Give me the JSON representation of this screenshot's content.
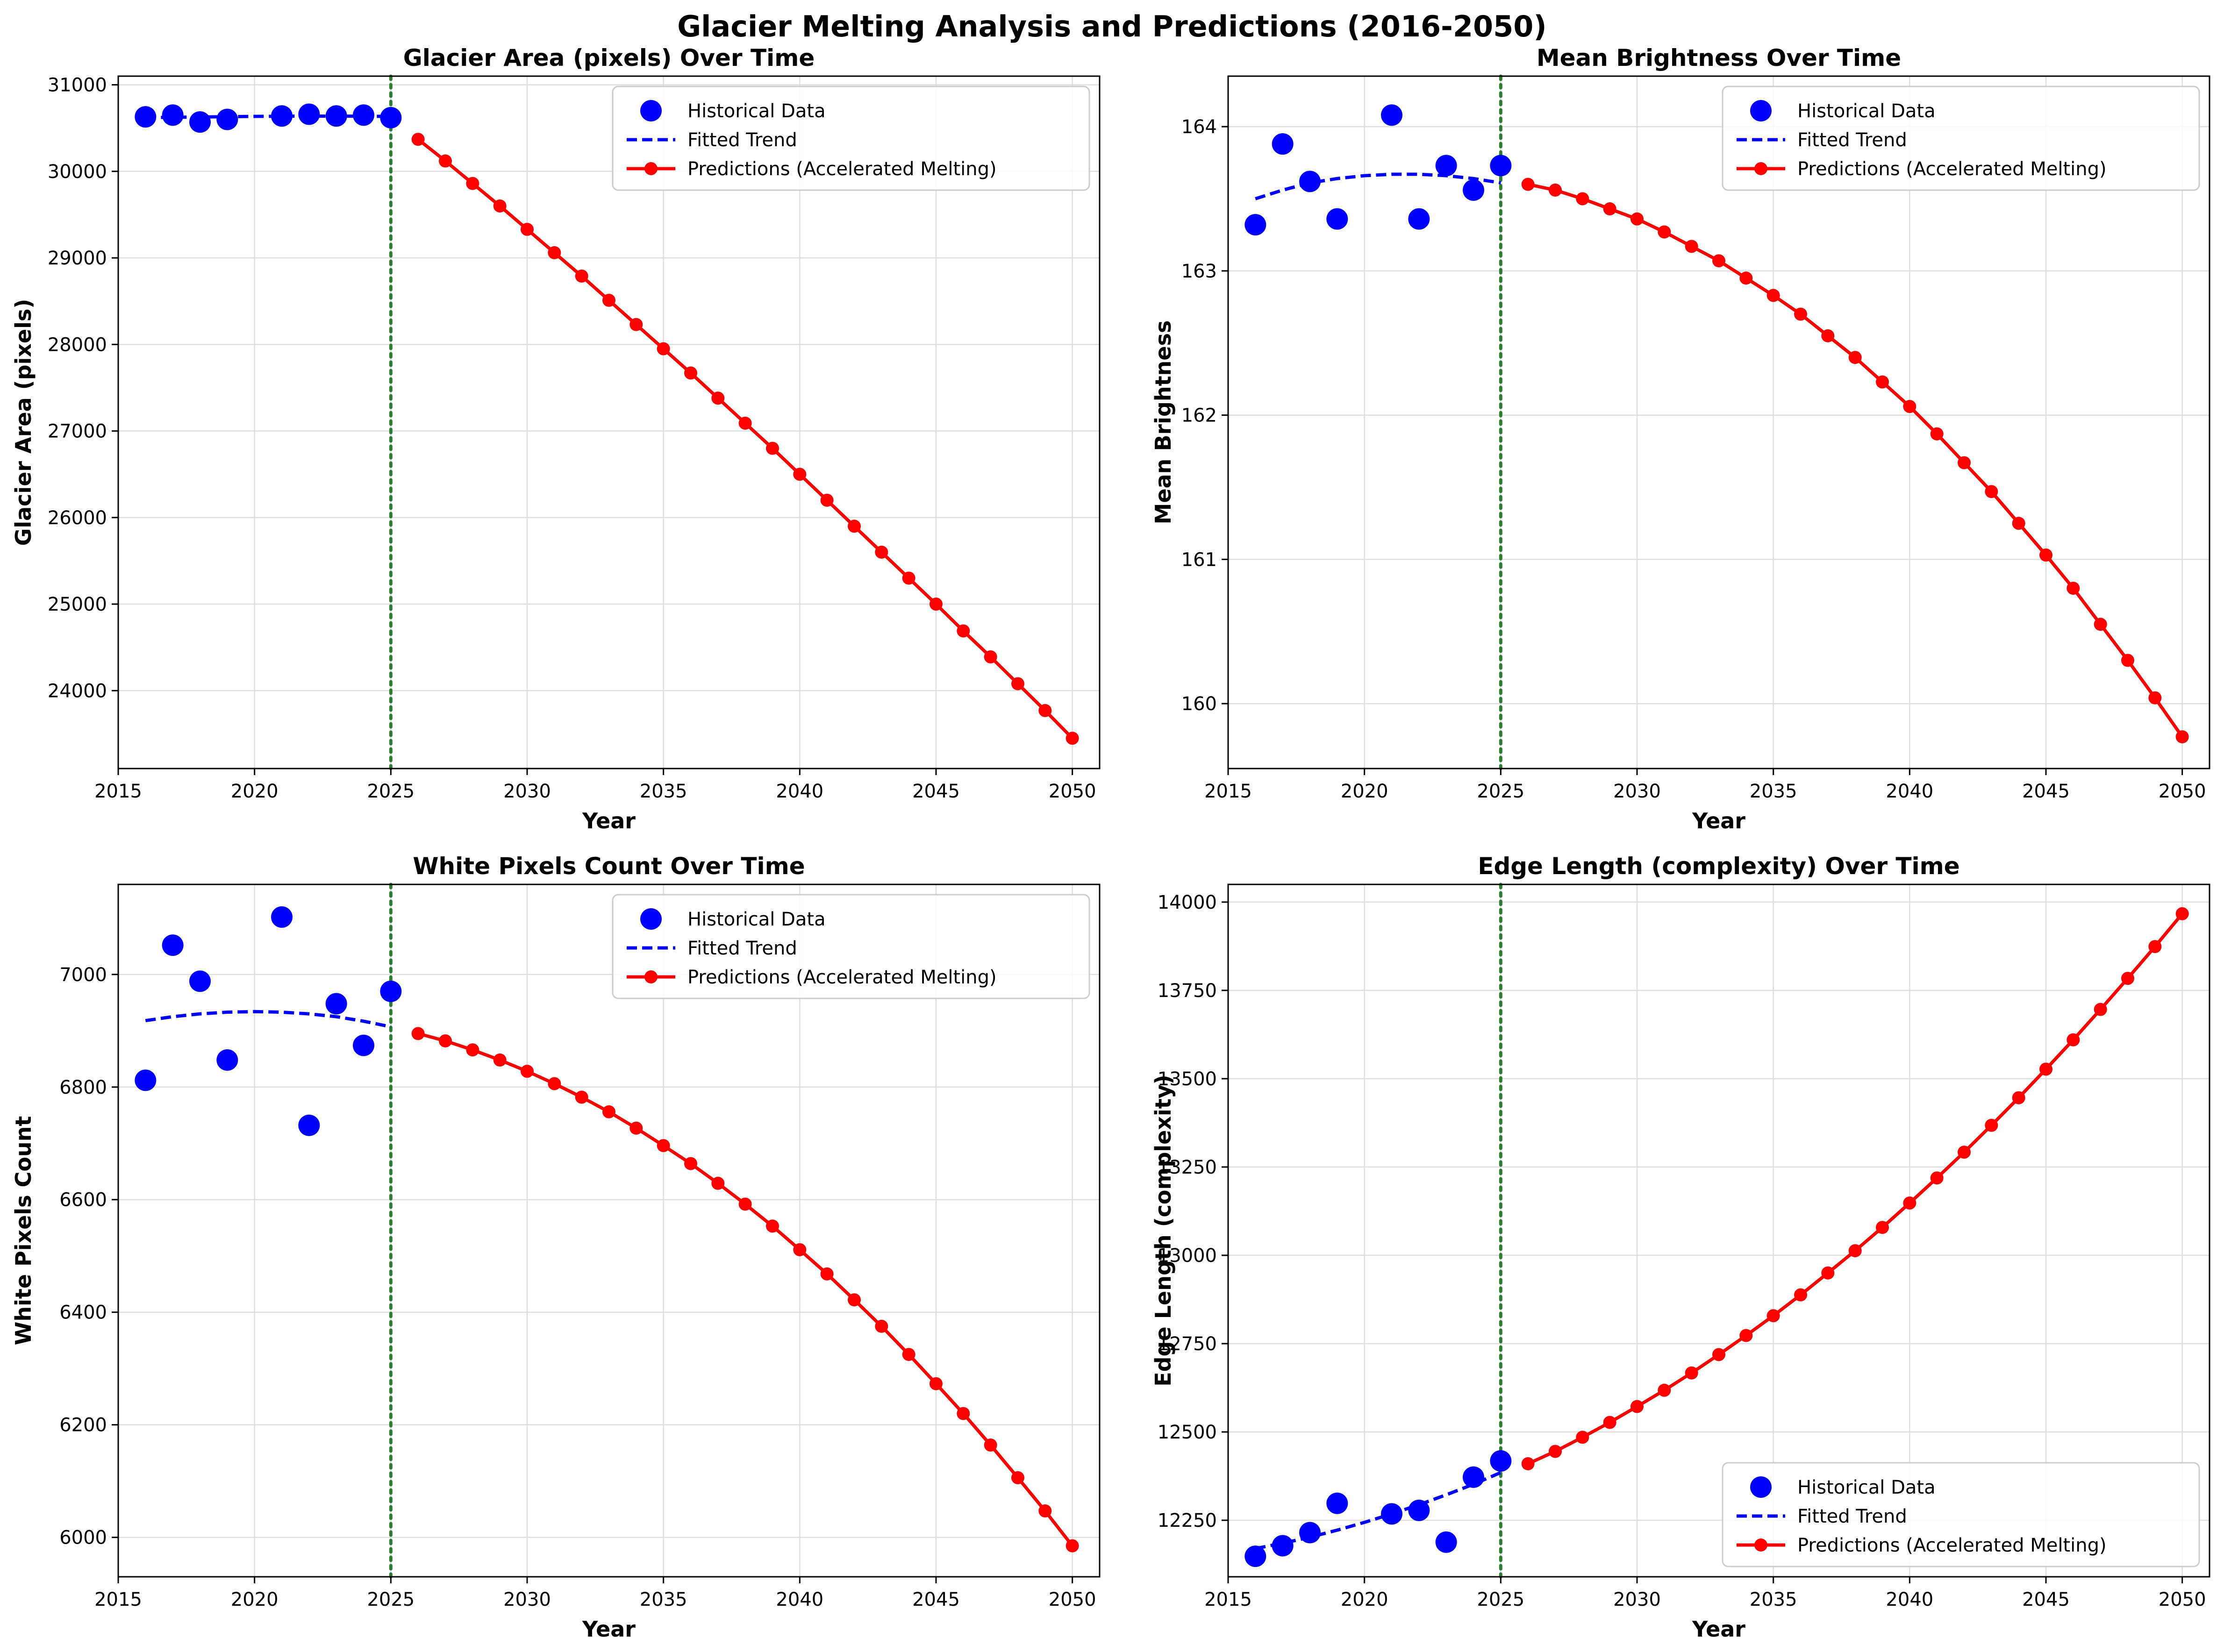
{
  "figure": {
    "suptitle": "Glacier Melting Analysis and Predictions (2016-2050)"
  },
  "legend_labels": {
    "historical": "Historical Data",
    "fitted": "Fitted Trend",
    "predictions": "Predictions (Accelerated Melting)"
  },
  "colors": {
    "historical": "#0000ff",
    "fitted": "#0000ff",
    "predictions": "#ff0000",
    "current_year_line": "#2e7d32",
    "grid": "#dddddd"
  },
  "chart_data": [
    {
      "type": "line",
      "title": "Glacier Area (pixels) Over Time",
      "xlabel": "Year",
      "ylabel": "Glacier Area (pixels)",
      "xlim": [
        2015,
        2051
      ],
      "ylim": [
        23100,
        31100
      ],
      "xticks": [
        2015,
        2020,
        2025,
        2030,
        2035,
        2040,
        2045,
        2050
      ],
      "yticks": [
        24000,
        25000,
        26000,
        27000,
        28000,
        29000,
        30000,
        31000
      ],
      "grid": true,
      "legend_position": "upper-right",
      "current_year": 2025,
      "historical": {
        "x": [
          2016,
          2017,
          2018,
          2019,
          2021,
          2022,
          2023,
          2024,
          2025
        ],
        "y": [
          30630,
          30650,
          30570,
          30600,
          30640,
          30660,
          30640,
          30650,
          30620
        ]
      },
      "fitted": {
        "x": [
          2016,
          2017,
          2018,
          2019,
          2020,
          2021,
          2022,
          2023,
          2024,
          2025
        ],
        "y": [
          30620,
          30625,
          30628,
          30632,
          30635,
          30637,
          30638,
          30638,
          30637,
          30635
        ]
      },
      "predictions": {
        "x": [
          2026,
          2027,
          2028,
          2029,
          2030,
          2031,
          2032,
          2033,
          2034,
          2035,
          2036,
          2037,
          2038,
          2039,
          2040,
          2041,
          2042,
          2043,
          2044,
          2045,
          2046,
          2047,
          2048,
          2049,
          2050
        ],
        "y": [
          30370,
          30120,
          29860,
          29600,
          29330,
          29060,
          28790,
          28510,
          28230,
          27950,
          27670,
          27380,
          27090,
          26800,
          26500,
          26200,
          25900,
          25600,
          25300,
          25000,
          24690,
          24390,
          24080,
          23770,
          23450
        ]
      }
    },
    {
      "type": "line",
      "title": "Mean Brightness Over Time",
      "xlabel": "Year",
      "ylabel": "Mean Brightness",
      "xlim": [
        2015,
        2051
      ],
      "ylim": [
        159.55,
        164.35
      ],
      "xticks": [
        2015,
        2020,
        2025,
        2030,
        2035,
        2040,
        2045,
        2050
      ],
      "yticks": [
        160,
        161,
        162,
        163,
        164
      ],
      "grid": true,
      "legend_position": "upper-right",
      "current_year": 2025,
      "historical": {
        "x": [
          2016,
          2017,
          2018,
          2019,
          2021,
          2022,
          2023,
          2024,
          2025
        ],
        "y": [
          163.32,
          163.88,
          163.62,
          163.36,
          164.08,
          163.36,
          163.73,
          163.56,
          163.73
        ]
      },
      "fitted": {
        "x": [
          2016,
          2017,
          2018,
          2019,
          2020,
          2021,
          2022,
          2023,
          2024,
          2025
        ],
        "y": [
          163.5,
          163.56,
          163.61,
          163.64,
          163.66,
          163.67,
          163.67,
          163.66,
          163.64,
          163.61
        ]
      },
      "predictions": {
        "x": [
          2026,
          2027,
          2028,
          2029,
          2030,
          2031,
          2032,
          2033,
          2034,
          2035,
          2036,
          2037,
          2038,
          2039,
          2040,
          2041,
          2042,
          2043,
          2044,
          2045,
          2046,
          2047,
          2048,
          2049,
          2050
        ],
        "y": [
          163.6,
          163.56,
          163.5,
          163.43,
          163.36,
          163.27,
          163.17,
          163.07,
          162.95,
          162.83,
          162.7,
          162.55,
          162.4,
          162.23,
          162.06,
          161.87,
          161.67,
          161.47,
          161.25,
          161.03,
          160.8,
          160.55,
          160.3,
          160.04,
          159.77
        ]
      }
    },
    {
      "type": "line",
      "title": "White Pixels Count Over Time",
      "xlabel": "Year",
      "ylabel": "White Pixels Count",
      "xlim": [
        2015,
        2051
      ],
      "ylim": [
        5930,
        7160
      ],
      "xticks": [
        2015,
        2020,
        2025,
        2030,
        2035,
        2040,
        2045,
        2050
      ],
      "yticks": [
        6000,
        6200,
        6400,
        6600,
        6800,
        7000
      ],
      "grid": true,
      "legend_position": "upper-right",
      "current_year": 2025,
      "historical": {
        "x": [
          2016,
          2017,
          2018,
          2019,
          2021,
          2022,
          2023,
          2024,
          2025
        ],
        "y": [
          6812,
          7052,
          6988,
          6848,
          7102,
          6732,
          6948,
          6874,
          6970
        ]
      },
      "fitted": {
        "x": [
          2016,
          2017,
          2018,
          2019,
          2020,
          2021,
          2022,
          2023,
          2024,
          2025
        ],
        "y": [
          6918,
          6925,
          6930,
          6933,
          6934,
          6933,
          6930,
          6925,
          6917,
          6907
        ]
      },
      "predictions": {
        "x": [
          2026,
          2027,
          2028,
          2029,
          2030,
          2031,
          2032,
          2033,
          2034,
          2035,
          2036,
          2037,
          2038,
          2039,
          2040,
          2041,
          2042,
          2043,
          2044,
          2045,
          2046,
          2047,
          2048,
          2049,
          2050
        ],
        "y": [
          6895,
          6882,
          6866,
          6848,
          6828,
          6806,
          6782,
          6756,
          6727,
          6696,
          6664,
          6629,
          6592,
          6553,
          6511,
          6468,
          6422,
          6375,
          6325,
          6273,
          6220,
          6164,
          6106,
          6047,
          5985
        ]
      }
    },
    {
      "type": "line",
      "title": "Edge Length (complexity) Over Time",
      "xlabel": "Year",
      "ylabel": "Edge Length (complexity)",
      "xlim": [
        2015,
        2051
      ],
      "ylim": [
        12090,
        14050
      ],
      "xticks": [
        2015,
        2020,
        2025,
        2030,
        2035,
        2040,
        2045,
        2050
      ],
      "yticks": [
        12250,
        12500,
        12750,
        13000,
        13250,
        13500,
        13750,
        14000
      ],
      "grid": true,
      "legend_position": "lower-right",
      "current_year": 2025,
      "historical": {
        "x": [
          2016,
          2017,
          2018,
          2019,
          2021,
          2022,
          2023,
          2024,
          2025
        ],
        "y": [
          12148,
          12178,
          12215,
          12298,
          12268,
          12278,
          12188,
          12372,
          12418
        ]
      },
      "fitted": {
        "x": [
          2016,
          2017,
          2018,
          2019,
          2020,
          2021,
          2022,
          2023,
          2024,
          2025
        ],
        "y": [
          12170,
          12185,
          12202,
          12222,
          12244,
          12268,
          12294,
          12322,
          12352,
          12385
        ]
      },
      "predictions": {
        "x": [
          2026,
          2027,
          2028,
          2029,
          2030,
          2031,
          2032,
          2033,
          2034,
          2035,
          2036,
          2037,
          2038,
          2039,
          2040,
          2041,
          2042,
          2043,
          2044,
          2045,
          2046,
          2047,
          2048,
          2049,
          2050
        ],
        "y": [
          12410,
          12445,
          12485,
          12527,
          12572,
          12618,
          12667,
          12719,
          12773,
          12829,
          12888,
          12950,
          13013,
          13079,
          13148,
          13219,
          13292,
          13368,
          13446,
          13527,
          13610,
          13696,
          13784,
          13874,
          13967
        ]
      }
    }
  ]
}
